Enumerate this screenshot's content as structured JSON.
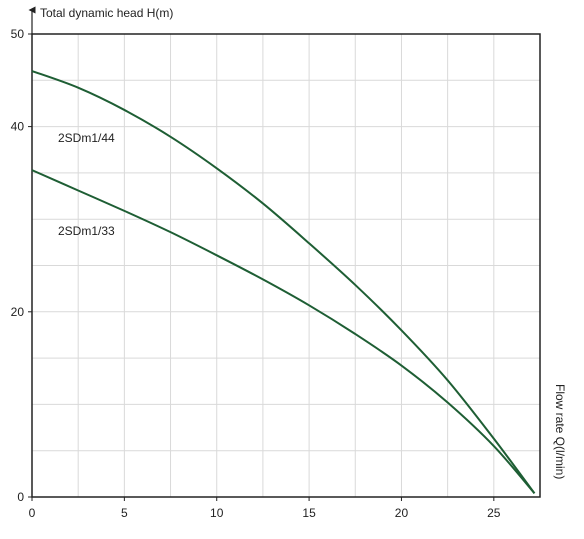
{
  "chart_data": {
    "type": "line",
    "xlabel": "Flow rate Q(l/min)",
    "ylabel": "Total dynamic head H(m)",
    "xlim": [
      0,
      27.5
    ],
    "ylim": [
      0,
      50
    ],
    "x_ticks": [
      0,
      5,
      10,
      15,
      20,
      25
    ],
    "y_ticks": [
      0,
      20,
      40,
      50
    ],
    "x_tick_labels": [
      "0",
      "5",
      "10",
      "15",
      "20",
      "25"
    ],
    "y_tick_labels": [
      "0",
      "20",
      "40",
      "50"
    ],
    "grid": true,
    "grid_x_step": 2.5,
    "grid_y_step": 5,
    "series": [
      {
        "name": "2SDm1/44",
        "color": "#1e5e34",
        "x": [
          0,
          2.5,
          5,
          7.5,
          10,
          12.5,
          15,
          17.5,
          20,
          22.5,
          25,
          27.2
        ],
        "y": [
          46,
          44.2,
          41.8,
          38.9,
          35.5,
          31.7,
          27.4,
          22.9,
          18,
          12.6,
          6.3,
          0.4
        ]
      },
      {
        "name": "2SDm1/33",
        "color": "#1e5e34",
        "x": [
          0,
          2.5,
          5,
          7.5,
          10,
          12.5,
          15,
          17.5,
          20,
          22.5,
          25,
          27.2
        ],
        "y": [
          35.3,
          33.1,
          30.9,
          28.6,
          26.1,
          23.5,
          20.7,
          17.6,
          14.2,
          10.2,
          5.5,
          0.4
        ]
      }
    ]
  }
}
